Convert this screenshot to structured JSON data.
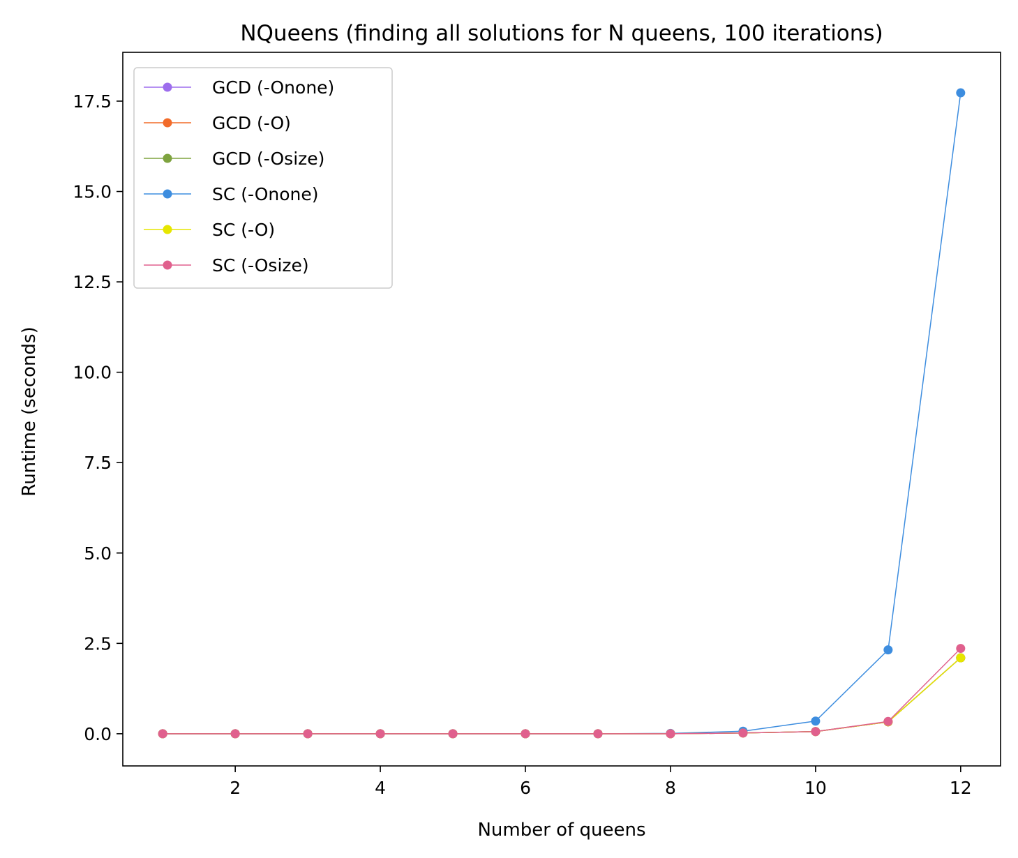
{
  "chart_data": {
    "type": "line",
    "title": "NQueens (finding all solutions for N queens, 100 iterations)",
    "xlabel": "Number of queens",
    "ylabel": "Runtime (seconds)",
    "xlim": [
      0.45,
      12.55
    ],
    "ylim": [
      -0.89,
      18.85
    ],
    "xticks": [
      2,
      4,
      6,
      8,
      10,
      12
    ],
    "xtick_labels": [
      "2",
      "4",
      "6",
      "8",
      "10",
      "12"
    ],
    "yticks": [
      0.0,
      2.5,
      5.0,
      7.5,
      10.0,
      12.5,
      15.0,
      17.5
    ],
    "ytick_labels": [
      "0.0",
      "2.5",
      "5.0",
      "7.5",
      "10.0",
      "12.5",
      "15.0",
      "17.5"
    ],
    "grid": false,
    "legend_position": "top-left",
    "x": [
      1,
      2,
      3,
      4,
      5,
      6,
      7,
      8,
      9,
      10,
      11,
      12
    ],
    "series": [
      {
        "name": "GCD (-Onone)",
        "color": "#9d6ded",
        "values": [
          0.0,
          0.0,
          0.0,
          0.0,
          0.0,
          0.0,
          0.0,
          0.0,
          0.02,
          0.06,
          0.33,
          2.1
        ]
      },
      {
        "name": "GCD (-O)",
        "color": "#f26b29",
        "values": [
          0.0,
          0.0,
          0.0,
          0.0,
          0.0,
          0.0,
          0.0,
          0.0,
          0.02,
          0.06,
          0.33,
          2.1
        ]
      },
      {
        "name": "GCD (-Osize)",
        "color": "#7ea33f",
        "values": [
          0.0,
          0.0,
          0.0,
          0.0,
          0.0,
          0.0,
          0.0,
          0.0,
          0.02,
          0.06,
          0.33,
          2.1
        ]
      },
      {
        "name": "SC (-Onone)",
        "color": "#3d8ddf",
        "values": [
          0.0,
          0.0,
          0.0,
          0.0,
          0.0,
          0.0,
          0.0,
          0.01,
          0.07,
          0.35,
          2.32,
          17.73
        ]
      },
      {
        "name": "SC (-O)",
        "color": "#e6e600",
        "values": [
          0.0,
          0.0,
          0.0,
          0.0,
          0.0,
          0.0,
          0.0,
          0.0,
          0.02,
          0.06,
          0.33,
          2.1
        ]
      },
      {
        "name": "SC (-Osize)",
        "color": "#e0608d",
        "values": [
          0.0,
          0.0,
          0.0,
          0.0,
          0.0,
          0.0,
          0.0,
          0.0,
          0.02,
          0.06,
          0.34,
          2.36
        ]
      }
    ]
  }
}
